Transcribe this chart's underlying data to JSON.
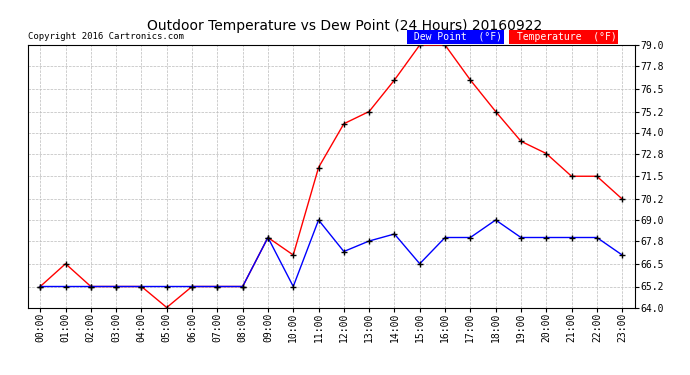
{
  "title": "Outdoor Temperature vs Dew Point (24 Hours) 20160922",
  "copyright": "Copyright 2016 Cartronics.com",
  "hours": [
    "00:00",
    "01:00",
    "02:00",
    "03:00",
    "04:00",
    "05:00",
    "06:00",
    "07:00",
    "08:00",
    "09:00",
    "10:00",
    "11:00",
    "12:00",
    "13:00",
    "14:00",
    "15:00",
    "16:00",
    "17:00",
    "18:00",
    "19:00",
    "20:00",
    "21:00",
    "22:00",
    "23:00"
  ],
  "temperature": [
    65.2,
    66.5,
    65.2,
    65.2,
    65.2,
    64.0,
    65.2,
    65.2,
    65.2,
    68.0,
    67.0,
    72.0,
    74.5,
    75.2,
    77.0,
    79.0,
    79.0,
    77.0,
    75.2,
    73.5,
    72.8,
    71.5,
    71.5,
    70.2
  ],
  "dew_point": [
    65.2,
    65.2,
    65.2,
    65.2,
    65.2,
    65.2,
    65.2,
    65.2,
    65.2,
    68.0,
    65.2,
    69.0,
    67.2,
    67.8,
    68.2,
    66.5,
    68.0,
    68.0,
    69.0,
    68.0,
    68.0,
    68.0,
    68.0,
    67.0
  ],
  "temp_color": "red",
  "dew_color": "blue",
  "ylim": [
    64.0,
    79.0
  ],
  "yticks": [
    64.0,
    65.2,
    66.5,
    67.8,
    69.0,
    70.2,
    71.5,
    72.8,
    74.0,
    75.2,
    76.5,
    77.8,
    79.0
  ],
  "bg_color": "white",
  "grid_color": "#bbbbbb",
  "title_fontsize": 10,
  "tick_fontsize": 7
}
